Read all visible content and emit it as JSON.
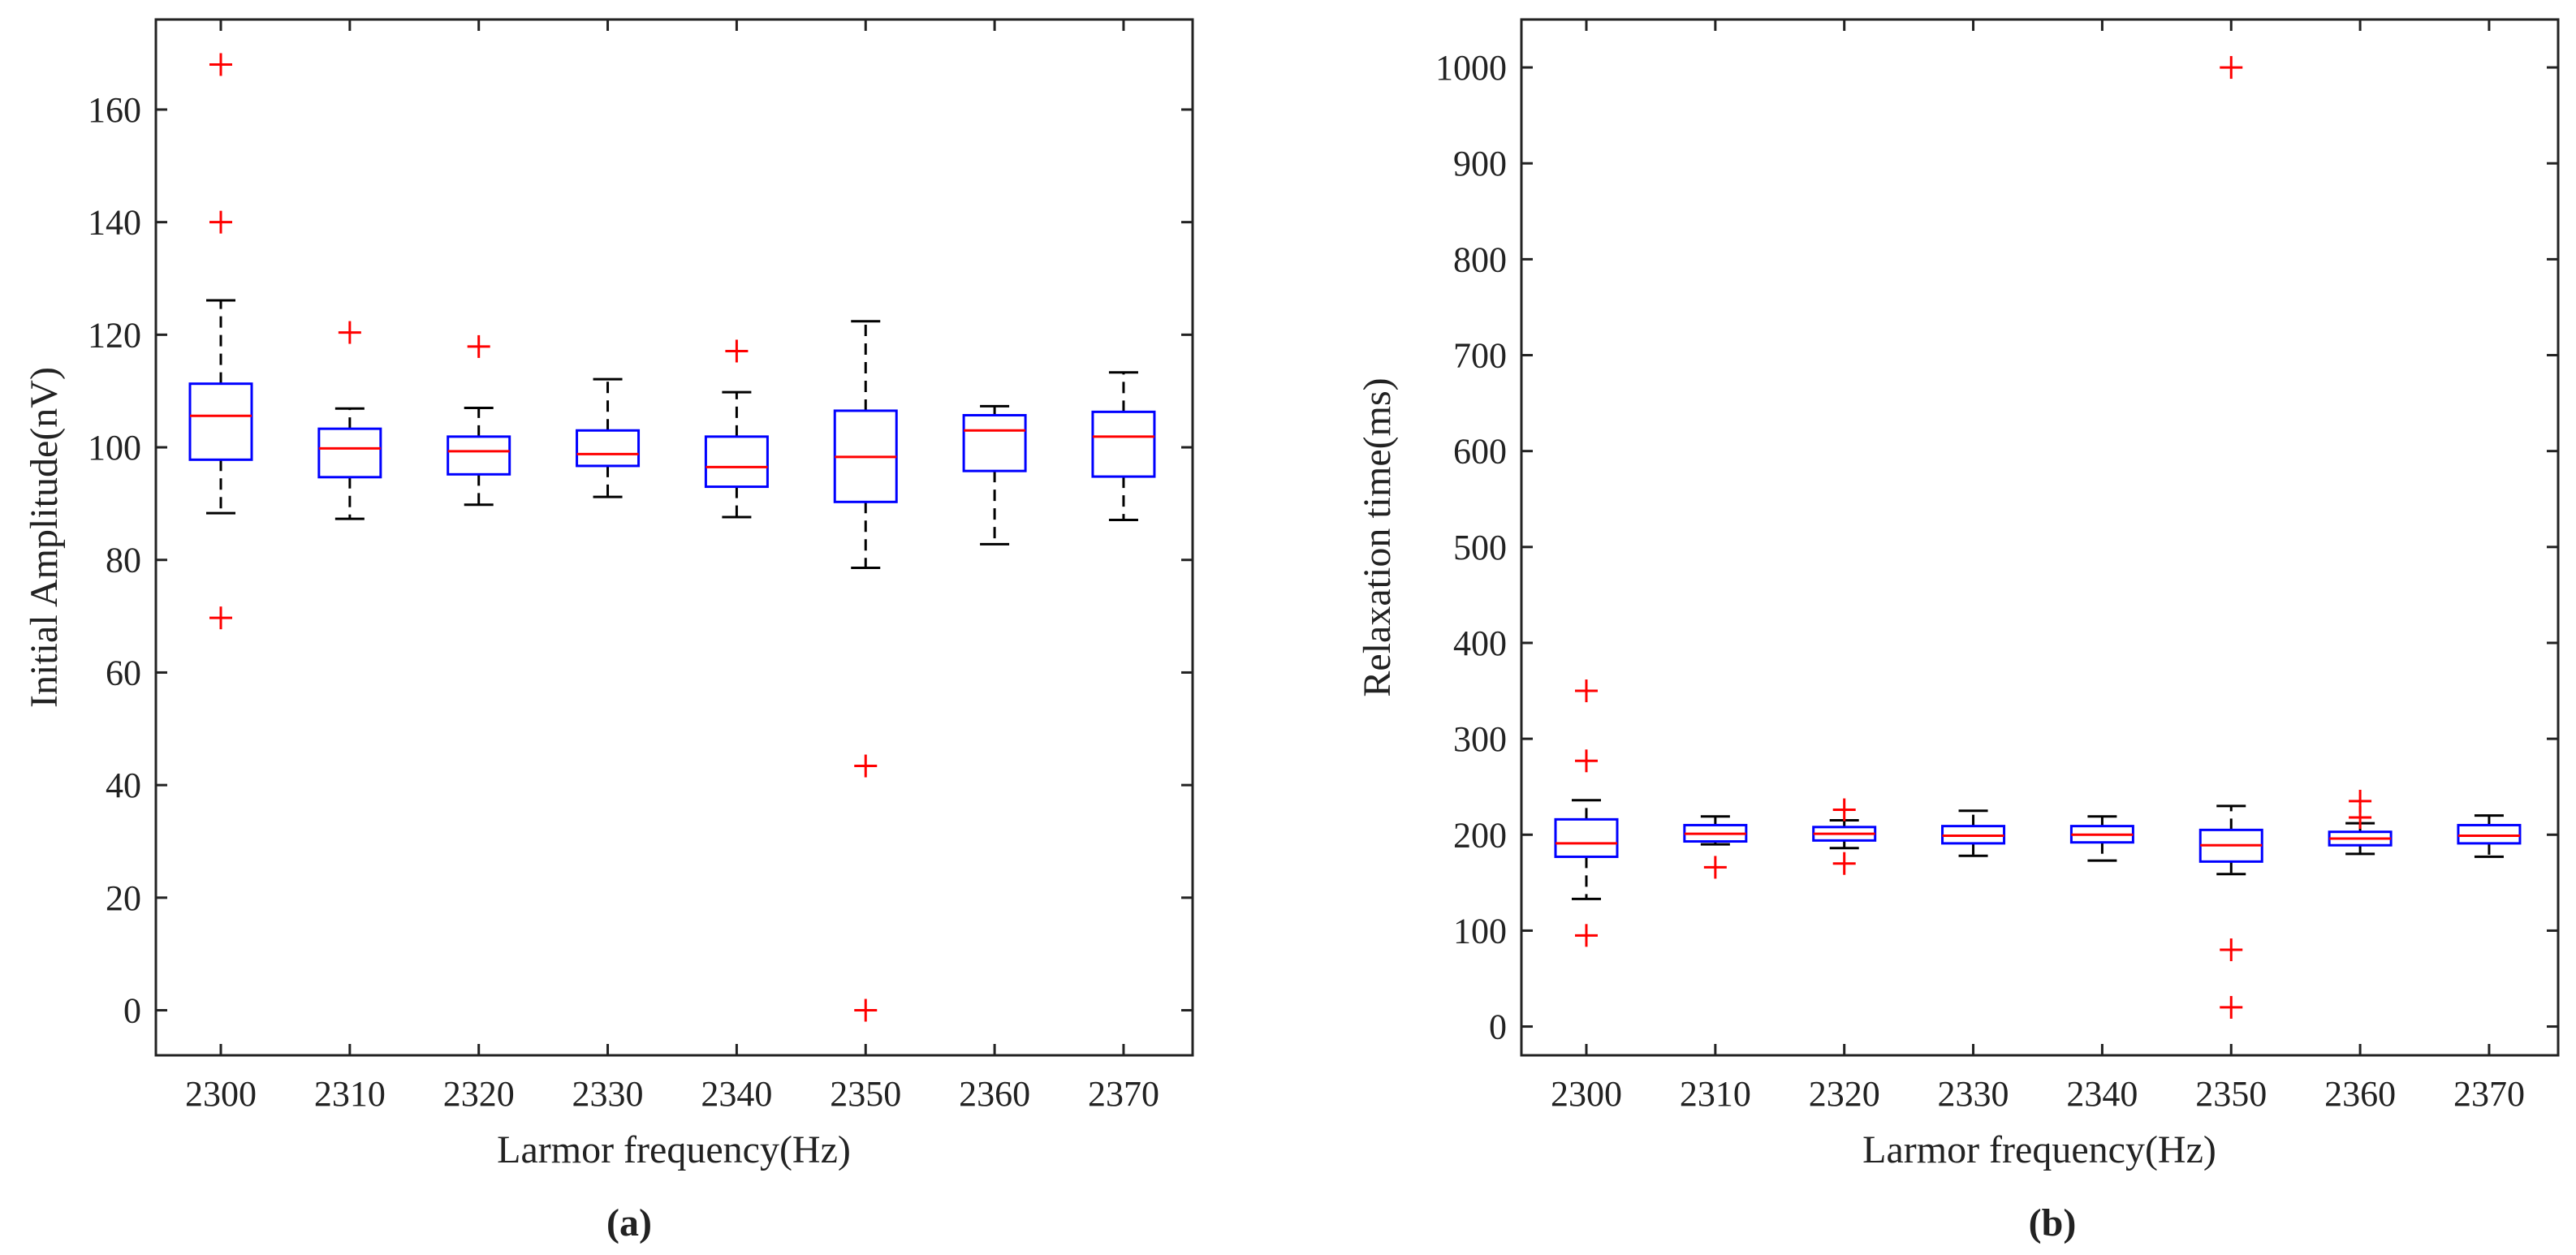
{
  "chart_data": [
    {
      "type": "boxplot",
      "panel_label": "(a)",
      "xlabel": "Larmor frequency(Hz)",
      "ylabel": "Initial Amplitude(nV)",
      "ylim": [
        -8,
        176
      ],
      "yticks": [
        0,
        20,
        40,
        60,
        80,
        100,
        120,
        140,
        160
      ],
      "ytick_labels": [
        "0",
        "20",
        "40",
        "60",
        "80",
        "100",
        "120",
        "140",
        "160"
      ],
      "categories": [
        "2300",
        "2310",
        "2320",
        "2330",
        "2340",
        "2350",
        "2360",
        "2370"
      ],
      "boxes": [
        {
          "q1": 97.8,
          "median": 105.6,
          "q3": 111.3,
          "whisker_low": 88.3,
          "whisker_high": 126.1,
          "outliers": [
            168.0,
            140.0,
            69.7
          ]
        },
        {
          "q1": 94.7,
          "median": 99.8,
          "q3": 103.3,
          "whisker_low": 87.3,
          "whisker_high": 106.9,
          "outliers": [
            120.4
          ]
        },
        {
          "q1": 95.2,
          "median": 99.3,
          "q3": 101.9,
          "whisker_low": 89.8,
          "whisker_high": 107.0,
          "outliers": [
            117.9
          ]
        },
        {
          "q1": 96.7,
          "median": 98.8,
          "q3": 103.0,
          "whisker_low": 91.2,
          "whisker_high": 112.1,
          "outliers": []
        },
        {
          "q1": 93.0,
          "median": 96.5,
          "q3": 101.9,
          "whisker_low": 87.6,
          "whisker_high": 109.8,
          "outliers": [
            117.1
          ]
        },
        {
          "q1": 90.3,
          "median": 98.3,
          "q3": 106.5,
          "whisker_low": 78.6,
          "whisker_high": 122.4,
          "outliers": [
            43.4,
            0.0
          ]
        },
        {
          "q1": 95.8,
          "median": 103.0,
          "q3": 105.7,
          "whisker_low": 82.8,
          "whisker_high": 107.3,
          "outliers": []
        },
        {
          "q1": 94.8,
          "median": 101.9,
          "q3": 106.3,
          "whisker_low": 87.1,
          "whisker_high": 113.3,
          "outliers": []
        }
      ]
    },
    {
      "type": "boxplot",
      "panel_label": "(b)",
      "xlabel": "Larmor frequency(Hz)",
      "ylabel": "Relaxation time(ms)",
      "ylim": [
        -30,
        1050
      ],
      "yticks": [
        0,
        100,
        200,
        300,
        400,
        500,
        600,
        700,
        800,
        900,
        1000
      ],
      "ytick_labels": [
        "0",
        "100",
        "200",
        "300",
        "400",
        "500",
        "600",
        "700",
        "800",
        "900",
        "1000"
      ],
      "categories": [
        "2300",
        "2310",
        "2320",
        "2330",
        "2340",
        "2350",
        "2360",
        "2370"
      ],
      "boxes": [
        {
          "q1": 177,
          "median": 191,
          "q3": 216,
          "whisker_low": 133,
          "whisker_high": 236,
          "outliers": [
            350,
            277,
            95
          ]
        },
        {
          "q1": 193,
          "median": 201,
          "q3": 210,
          "whisker_low": 190,
          "whisker_high": 219,
          "outliers": [
            166
          ]
        },
        {
          "q1": 194,
          "median": 201,
          "q3": 208,
          "whisker_low": 186,
          "whisker_high": 215,
          "outliers": [
            226,
            170
          ]
        },
        {
          "q1": 191,
          "median": 199,
          "q3": 209,
          "whisker_low": 178,
          "whisker_high": 225,
          "outliers": []
        },
        {
          "q1": 192,
          "median": 200,
          "q3": 209,
          "whisker_low": 173,
          "whisker_high": 219,
          "outliers": []
        },
        {
          "q1": 172,
          "median": 189,
          "q3": 205,
          "whisker_low": 159,
          "whisker_high": 230,
          "outliers": [
            80,
            20,
            1000
          ]
        },
        {
          "q1": 189,
          "median": 196,
          "q3": 203,
          "whisker_low": 180,
          "whisker_high": 212,
          "outliers": [
            235,
            218
          ]
        },
        {
          "q1": 191,
          "median": 199,
          "q3": 210,
          "whisker_low": 177,
          "whisker_high": 220,
          "outliers": []
        }
      ]
    }
  ],
  "colors": {
    "box": "#0000ff",
    "median": "#ff0000",
    "outlier": "#ff0000",
    "whisker": "#000000",
    "axis": "#222222"
  }
}
